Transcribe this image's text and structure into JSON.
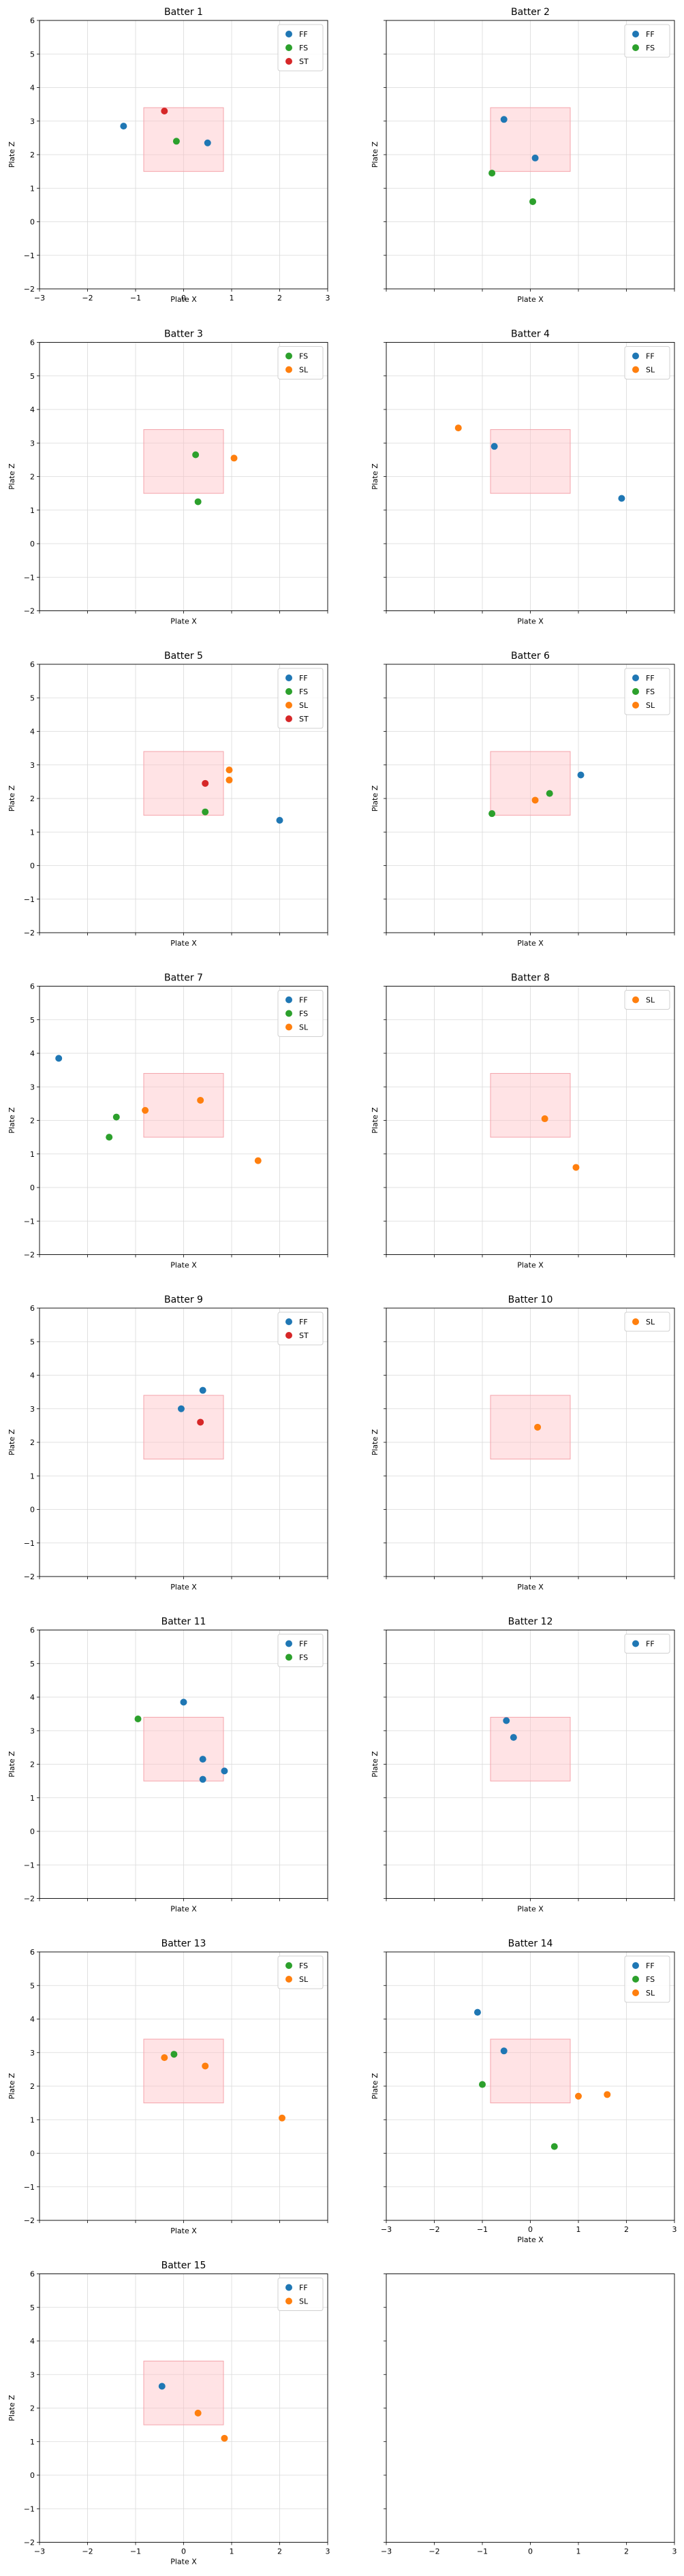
{
  "colors": {
    "FF": "#1f77b4",
    "FS": "#2ca02c",
    "SL": "#ff7f0e",
    "ST": "#d62728",
    "strike_zone_fill": "#ffc0c6",
    "strike_zone_stroke": "#f4a3ab",
    "grid": "#d9d9d9",
    "legend_border": "#d0d0d0"
  },
  "strike_zone": {
    "x": [
      -0.83,
      0.83
    ],
    "z": [
      1.5,
      3.4
    ]
  },
  "chart_data": [
    {
      "type": "scatter",
      "title": "Batter 1",
      "xlabel": "Plate X",
      "ylabel": "Plate Z",
      "xlim": [
        -3,
        3
      ],
      "ylim": [
        -2,
        6
      ],
      "grid": true,
      "legend": "upper right",
      "x_ticks": [
        "−3",
        "−2",
        "−1",
        "0",
        "1",
        "2",
        "3"
      ],
      "y_ticks": [
        "−2",
        "−1",
        "0",
        "1",
        "2",
        "3",
        "4",
        "5",
        "6"
      ],
      "series": [
        {
          "name": "FF",
          "points": [
            [
              -1.25,
              2.85
            ],
            [
              0.5,
              2.35
            ]
          ]
        },
        {
          "name": "FS",
          "points": [
            [
              -0.15,
              2.4
            ]
          ]
        },
        {
          "name": "ST",
          "points": [
            [
              -0.4,
              3.3
            ]
          ]
        }
      ]
    },
    {
      "type": "scatter",
      "title": "Batter 2",
      "xlabel": "Plate X",
      "ylabel": "Plate Z",
      "xlim": [
        -3,
        3
      ],
      "ylim": [
        -2,
        6
      ],
      "grid": true,
      "legend": "upper right",
      "x_ticks": [],
      "y_ticks": [],
      "series": [
        {
          "name": "FF",
          "points": [
            [
              -0.55,
              3.05
            ],
            [
              0.1,
              1.9
            ]
          ]
        },
        {
          "name": "FS",
          "points": [
            [
              -0.8,
              1.45
            ],
            [
              0.05,
              0.6
            ]
          ]
        }
      ]
    },
    {
      "type": "scatter",
      "title": "Batter 3",
      "xlabel": "Plate X",
      "ylabel": "Plate Z",
      "xlim": [
        -3,
        3
      ],
      "ylim": [
        -2,
        6
      ],
      "grid": true,
      "legend": "upper right",
      "x_ticks": [],
      "y_ticks": [],
      "series": [
        {
          "name": "FS",
          "points": [
            [
              0.25,
              2.65
            ],
            [
              0.3,
              1.25
            ]
          ]
        },
        {
          "name": "SL",
          "points": [
            [
              1.05,
              2.55
            ]
          ]
        }
      ]
    },
    {
      "type": "scatter",
      "title": "Batter 4",
      "xlabel": "Plate X",
      "ylabel": "Plate Z",
      "xlim": [
        -3,
        3
      ],
      "ylim": [
        -2,
        6
      ],
      "grid": true,
      "legend": "upper right",
      "x_ticks": [],
      "y_ticks": [],
      "series": [
        {
          "name": "FF",
          "points": [
            [
              -0.75,
              2.9
            ],
            [
              1.9,
              1.35
            ]
          ]
        },
        {
          "name": "SL",
          "points": [
            [
              -1.5,
              3.45
            ]
          ]
        }
      ]
    },
    {
      "type": "scatter",
      "title": "Batter 5",
      "xlabel": "Plate X",
      "ylabel": "Plate Z",
      "xlim": [
        -3,
        3
      ],
      "ylim": [
        -2,
        6
      ],
      "grid": true,
      "legend": "upper right",
      "x_ticks": [],
      "y_ticks": [],
      "series": [
        {
          "name": "FF",
          "points": [
            [
              2.0,
              1.35
            ]
          ]
        },
        {
          "name": "FS",
          "points": [
            [
              0.45,
              1.6
            ]
          ]
        },
        {
          "name": "SL",
          "points": [
            [
              0.95,
              2.85
            ],
            [
              0.95,
              2.55
            ]
          ]
        },
        {
          "name": "ST",
          "points": [
            [
              0.45,
              2.45
            ]
          ]
        }
      ]
    },
    {
      "type": "scatter",
      "title": "Batter 6",
      "xlabel": "Plate X",
      "ylabel": "Plate Z",
      "xlim": [
        -3,
        3
      ],
      "ylim": [
        -2,
        6
      ],
      "grid": true,
      "legend": "upper right",
      "x_ticks": [],
      "y_ticks": [],
      "series": [
        {
          "name": "FF",
          "points": [
            [
              1.05,
              2.7
            ]
          ]
        },
        {
          "name": "FS",
          "points": [
            [
              0.4,
              2.15
            ],
            [
              -0.8,
              1.55
            ]
          ]
        },
        {
          "name": "SL",
          "points": [
            [
              0.1,
              1.95
            ]
          ]
        }
      ]
    },
    {
      "type": "scatter",
      "title": "Batter 7",
      "xlabel": "Plate X",
      "ylabel": "Plate Z",
      "xlim": [
        -3,
        3
      ],
      "ylim": [
        -2,
        6
      ],
      "grid": true,
      "legend": "upper right",
      "x_ticks": [],
      "y_ticks": [],
      "series": [
        {
          "name": "FF",
          "points": [
            [
              -2.6,
              3.85
            ]
          ]
        },
        {
          "name": "FS",
          "points": [
            [
              -1.4,
              2.1
            ],
            [
              -1.55,
              1.5
            ]
          ]
        },
        {
          "name": "SL",
          "points": [
            [
              -0.8,
              2.3
            ],
            [
              0.35,
              2.6
            ],
            [
              1.55,
              0.8
            ]
          ]
        }
      ]
    },
    {
      "type": "scatter",
      "title": "Batter 8",
      "xlabel": "Plate X",
      "ylabel": "Plate Z",
      "xlim": [
        -3,
        3
      ],
      "ylim": [
        -2,
        6
      ],
      "grid": true,
      "legend": "upper right",
      "x_ticks": [],
      "y_ticks": [],
      "series": [
        {
          "name": "SL",
          "points": [
            [
              0.3,
              2.05
            ],
            [
              0.95,
              0.6
            ]
          ]
        }
      ]
    },
    {
      "type": "scatter",
      "title": "Batter 9",
      "xlabel": "Plate X",
      "ylabel": "Plate Z",
      "xlim": [
        -3,
        3
      ],
      "ylim": [
        -2,
        6
      ],
      "grid": true,
      "legend": "upper right",
      "x_ticks": [],
      "y_ticks": [],
      "series": [
        {
          "name": "FF",
          "points": [
            [
              0.4,
              3.55
            ],
            [
              -0.05,
              3.0
            ]
          ]
        },
        {
          "name": "ST",
          "points": [
            [
              0.35,
              2.6
            ]
          ]
        }
      ]
    },
    {
      "type": "scatter",
      "title": "Batter 10",
      "xlabel": "Plate X",
      "ylabel": "Plate Z",
      "xlim": [
        -3,
        3
      ],
      "ylim": [
        -2,
        6
      ],
      "grid": true,
      "legend": "upper right",
      "x_ticks": [],
      "y_ticks": [],
      "series": [
        {
          "name": "SL",
          "points": [
            [
              0.15,
              2.45
            ]
          ]
        }
      ]
    },
    {
      "type": "scatter",
      "title": "Batter 11",
      "xlabel": "Plate X",
      "ylabel": "Plate Z",
      "xlim": [
        -3,
        3
      ],
      "ylim": [
        -2,
        6
      ],
      "grid": true,
      "legend": "upper right",
      "x_ticks": [],
      "y_ticks": [],
      "series": [
        {
          "name": "FF",
          "points": [
            [
              0.0,
              3.85
            ],
            [
              0.4,
              2.15
            ],
            [
              0.85,
              1.8
            ],
            [
              0.4,
              1.55
            ]
          ]
        },
        {
          "name": "FS",
          "points": [
            [
              -0.95,
              3.35
            ]
          ]
        }
      ]
    },
    {
      "type": "scatter",
      "title": "Batter 12",
      "xlabel": "Plate X",
      "ylabel": "Plate Z",
      "xlim": [
        -3,
        3
      ],
      "ylim": [
        -2,
        6
      ],
      "grid": true,
      "legend": "upper right",
      "x_ticks": [],
      "y_ticks": [],
      "series": [
        {
          "name": "FF",
          "points": [
            [
              -0.5,
              3.3
            ],
            [
              -0.35,
              2.8
            ]
          ]
        }
      ]
    },
    {
      "type": "scatter",
      "title": "Batter 13",
      "xlabel": "Plate X",
      "ylabel": "Plate Z",
      "xlim": [
        -3,
        3
      ],
      "ylim": [
        -2,
        6
      ],
      "grid": true,
      "legend": "upper right",
      "x_ticks": [],
      "y_ticks": [],
      "series": [
        {
          "name": "FS",
          "points": [
            [
              -0.2,
              2.95
            ]
          ]
        },
        {
          "name": "SL",
          "points": [
            [
              -0.4,
              2.85
            ],
            [
              0.45,
              2.6
            ],
            [
              2.05,
              1.05
            ]
          ]
        }
      ]
    },
    {
      "type": "scatter",
      "title": "Batter 14",
      "xlabel": "Plate X",
      "ylabel": "Plate Z",
      "xlim": [
        -3,
        3
      ],
      "ylim": [
        -2,
        6
      ],
      "grid": true,
      "legend": "upper right",
      "x_ticks": [
        "−3",
        "−2",
        "−1",
        "0",
        "1",
        "2",
        "3"
      ],
      "y_ticks": [],
      "series": [
        {
          "name": "FF",
          "points": [
            [
              -1.1,
              4.2
            ],
            [
              -0.55,
              3.05
            ]
          ]
        },
        {
          "name": "FS",
          "points": [
            [
              -1.0,
              2.05
            ],
            [
              0.5,
              0.2
            ]
          ]
        },
        {
          "name": "SL",
          "points": [
            [
              1.0,
              1.7
            ],
            [
              1.6,
              1.75
            ]
          ]
        }
      ]
    },
    {
      "type": "scatter",
      "title": "Batter 15",
      "xlabel": "Plate X",
      "ylabel": "Plate Z",
      "xlim": [
        -3,
        3
      ],
      "ylim": [
        -2,
        6
      ],
      "grid": true,
      "legend": "upper right",
      "x_ticks": [
        "−3",
        "−2",
        "−1",
        "0",
        "1",
        "2",
        "3"
      ],
      "y_ticks": [
        "−2",
        "−1",
        "0",
        "1",
        "2",
        "3",
        "4",
        "5",
        "6"
      ],
      "series": [
        {
          "name": "FF",
          "points": [
            [
              -0.45,
              2.65
            ]
          ]
        },
        {
          "name": "SL",
          "points": [
            [
              0.3,
              1.85
            ],
            [
              0.85,
              1.1
            ]
          ]
        }
      ]
    }
  ]
}
